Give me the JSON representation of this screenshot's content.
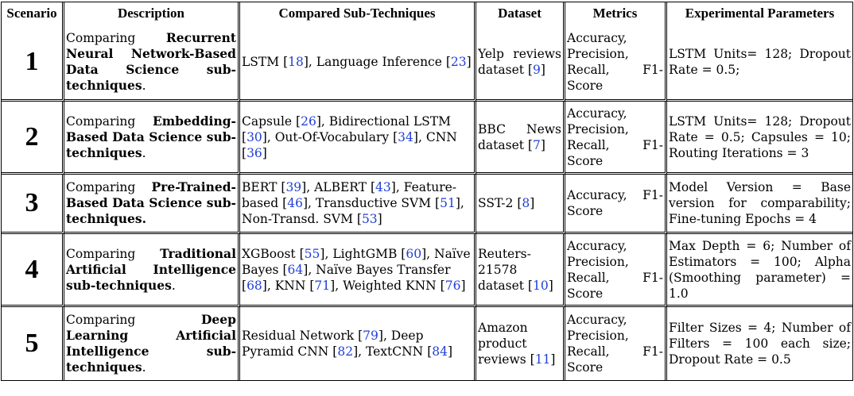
{
  "table": {
    "headers": [
      "Scenario",
      "Description",
      "Compared Sub-Techniques",
      "Dataset",
      "Metrics",
      "Experimental Parameters"
    ],
    "rows": [
      {
        "scenario": "1",
        "desc_pre": "Comparing ",
        "desc_bold": "Recurrent Neural Network-Based Data Science sub-techniques",
        "desc_post": ".",
        "techniques": [
          {
            "name": "LSTM ",
            "ref": "18",
            "sep": ", "
          },
          {
            "name": "Language Inference ",
            "ref": "23",
            "sep": ""
          }
        ],
        "dataset_name": "Yelp reviews dataset ",
        "dataset_ref": "9",
        "metrics": "Accuracy, Precision, Recall, F1-Score",
        "params": "LSTM Units= 128; Dropout Rate = 0.5;"
      },
      {
        "scenario": "2",
        "desc_pre": "Comparing ",
        "desc_bold": "Embedding-Based Data Science sub-techniques",
        "desc_post": ".",
        "techniques": [
          {
            "name": "Capsule ",
            "ref": "26",
            "sep": ", "
          },
          {
            "name": "Bidirectional LSTM ",
            "ref": "30",
            "sep": ", "
          },
          {
            "name": "Out-Of-Vocabulary ",
            "ref": "34",
            "sep": ", "
          },
          {
            "name": "CNN ",
            "ref": "36",
            "sep": ""
          }
        ],
        "dataset_name": "BBC News dataset ",
        "dataset_ref": "7",
        "metrics": "Accuracy, Precision, Recall, F1-Score",
        "params": "LSTM Units= 128; Dropout Rate = 0.5; Capsules = 10; Routing Iterations = 3"
      },
      {
        "scenario": "3",
        "desc_pre": "Comparing ",
        "desc_bold": "Pre-Trained-Based Data Science sub-techniques.",
        "desc_post": "",
        "techniques": [
          {
            "name": "BERT ",
            "ref": "39",
            "sep": ", "
          },
          {
            "name": "ALBERT ",
            "ref": "43",
            "sep": ", "
          },
          {
            "name": "Feature-based ",
            "ref": "46",
            "sep": ", "
          },
          {
            "name": "Transductive SVM ",
            "ref": "51",
            "sep": ", "
          },
          {
            "name": "Non-Transd. SVM ",
            "ref": "53",
            "sep": ""
          }
        ],
        "dataset_name": "SST-2 ",
        "dataset_ref": "8",
        "metrics": "Accuracy, F1-Score",
        "params": "Model Version = Base version for comparability; Fine-tuning Epochs = 4"
      },
      {
        "scenario": "4",
        "desc_pre": "Comparing ",
        "desc_bold": "Traditional Artificial Intelligence sub-techniques",
        "desc_post": ".",
        "techniques": [
          {
            "name": "XGBoost ",
            "ref": "55",
            "sep": ", "
          },
          {
            "name": "LightGMB ",
            "ref": "60",
            "sep": ", "
          },
          {
            "name": "Naïve Bayes ",
            "ref": "64",
            "sep": ", "
          },
          {
            "name": "Naïve Bayes Transfer ",
            "ref": "68",
            "sep": ", "
          },
          {
            "name": "KNN ",
            "ref": "71",
            "sep": ", "
          },
          {
            "name": "Weighted KNN ",
            "ref": "76",
            "sep": ""
          }
        ],
        "dataset_name": "Reuters-21578 dataset ",
        "dataset_ref": "10",
        "metrics": "Accuracy, Precision, Recall, F1-Score",
        "params": "Max Depth = 6; Number of Estimators = 100; Alpha (Smoothing parameter) = 1.0"
      },
      {
        "scenario": "5",
        "desc_pre": "Comparing ",
        "desc_bold": "Deep Learning Artificial Intelligence sub-techniques",
        "desc_post": ".",
        "techniques": [
          {
            "name": "Residual Network ",
            "ref": "79",
            "sep": ", "
          },
          {
            "name": "Deep Pyramid CNN ",
            "ref": "82",
            "sep": ", "
          },
          {
            "name": "TextCNN ",
            "ref": "84",
            "sep": ""
          }
        ],
        "dataset_name": "Amazon product reviews ",
        "dataset_ref": "11",
        "metrics": "Accuracy, Precision, Recall, F1-Score",
        "params": "Filter Sizes = 4; Number of Filters = 100 each size; Dropout Rate = 0.5"
      }
    ]
  },
  "colors": {
    "citation": "#1f3fd6",
    "text": "#000000",
    "border": "#000000"
  }
}
